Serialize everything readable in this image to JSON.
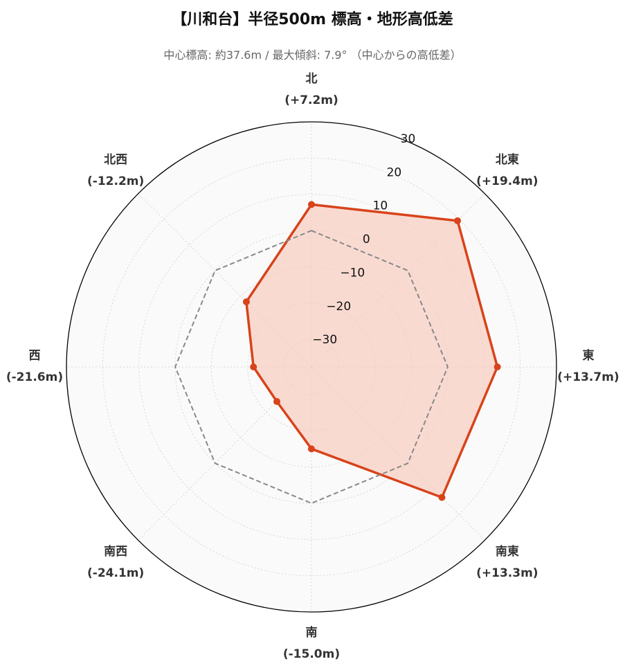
{
  "title": "【川和台】半径500m 標高・地形高低差",
  "subtitle": "中心標高: 約37.6m / 最大傾斜: 7.9° （中心からの高低差）",
  "chart_data": {
    "type": "radar",
    "categories": [
      "北",
      "北東",
      "東",
      "南東",
      "南",
      "南西",
      "西",
      "北西"
    ],
    "category_value_labels": [
      "(+7.2m)",
      "(+19.4m)",
      "(+13.7m)",
      "(+13.3m)",
      "(-15.0m)",
      "(-24.1m)",
      "(-21.6m)",
      "(-12.2m)"
    ],
    "series": [
      {
        "values": [
          7.2,
          19.4,
          13.7,
          13.3,
          -15.0,
          -24.1,
          -21.6,
          -12.2
        ],
        "color": "#d8431a",
        "fill": "#f9c9bb"
      },
      {
        "values": [
          0,
          0,
          0,
          0,
          0,
          0,
          0,
          0
        ],
        "style": "dashed",
        "color": "#888888"
      }
    ],
    "rlim": [
      -37.6,
      30
    ],
    "r_ticks": [
      -30,
      -20,
      -10,
      0,
      10,
      20,
      30
    ],
    "r_tick_labels": [
      "−30",
      "−20",
      "−10",
      "0",
      "10",
      "20",
      "30"
    ],
    "grid": true
  }
}
